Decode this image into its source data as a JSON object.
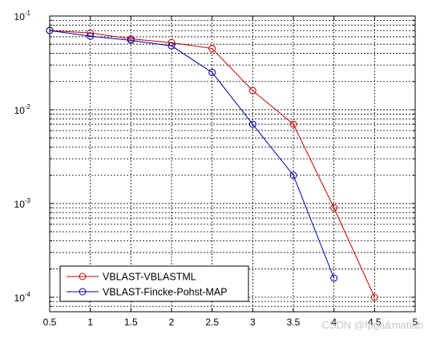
{
  "chart_data": {
    "type": "line",
    "x_scale": "linear",
    "y_scale": "log",
    "xlim": [
      0.5,
      5
    ],
    "ylim": [
      7e-05,
      0.1
    ],
    "x_ticks": [
      0.5,
      1,
      1.5,
      2,
      2.5,
      3,
      3.5,
      4,
      4.5,
      5
    ],
    "x_tick_labels": [
      "0.5",
      "1",
      "1.5",
      "2",
      "2.5",
      "3",
      "3.5",
      "4",
      "4.5",
      "5"
    ],
    "y_tick_labels": [
      {
        "base": "10",
        "exp": "-1",
        "value": 0.1
      },
      {
        "base": "10",
        "exp": "-2",
        "value": 0.01
      },
      {
        "base": "10",
        "exp": "-3",
        "value": 0.001
      },
      {
        "base": "10",
        "exp": "-4",
        "value": 0.0001
      }
    ],
    "grid": true,
    "legend_position": "bottom-left",
    "series": [
      {
        "name": "VBLAST-VBLASTML",
        "color": "#cc0000",
        "marker": "circle",
        "x": [
          0.5,
          1,
          1.5,
          2,
          2.5,
          3,
          3.5,
          4,
          4.5
        ],
        "y": [
          0.07,
          0.066,
          0.057,
          0.052,
          0.045,
          0.016,
          0.007,
          0.0009,
          0.0001
        ]
      },
      {
        "name": "VBLAST-Fincke-Pohst-MAP",
        "color": "#0000aa",
        "marker": "circle",
        "x": [
          0.5,
          1,
          1.5,
          2,
          2.5,
          3,
          3.5,
          4
        ],
        "y": [
          0.07,
          0.061,
          0.055,
          0.048,
          0.025,
          0.007,
          0.002,
          0.00016
        ]
      }
    ]
  },
  "watermark": "CSDN @fpga&matlab"
}
